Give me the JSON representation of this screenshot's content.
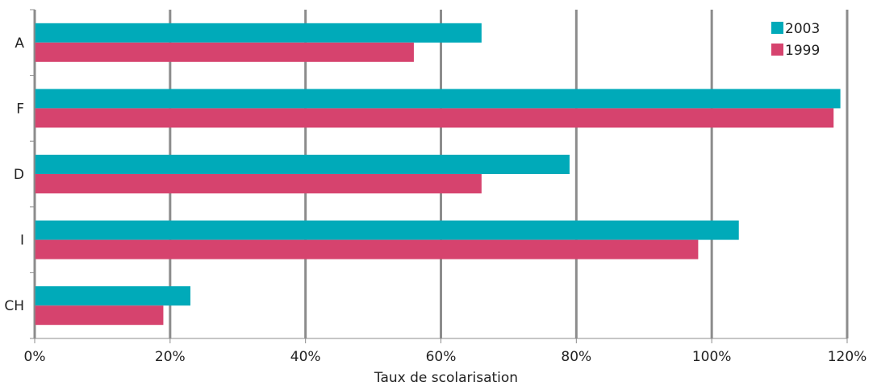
{
  "chart_data": {
    "type": "bar",
    "orientation": "horizontal",
    "categories": [
      "A",
      "F",
      "D",
      "I",
      "CH"
    ],
    "series": [
      {
        "name": "2003",
        "color": "#00aab9",
        "values": [
          66,
          119,
          79,
          104,
          23
        ]
      },
      {
        "name": "1999",
        "color": "#d6436e",
        "values": [
          56,
          118,
          66,
          98,
          19
        ]
      }
    ],
    "xlabel": "Taux de scolarisation",
    "ylabel": "",
    "xlim": [
      0,
      120
    ],
    "x_ticks": [
      "0%",
      "20%",
      "40%",
      "60%",
      "80%",
      "100%",
      "120%"
    ],
    "grid": true,
    "legend_position": "top-right"
  }
}
